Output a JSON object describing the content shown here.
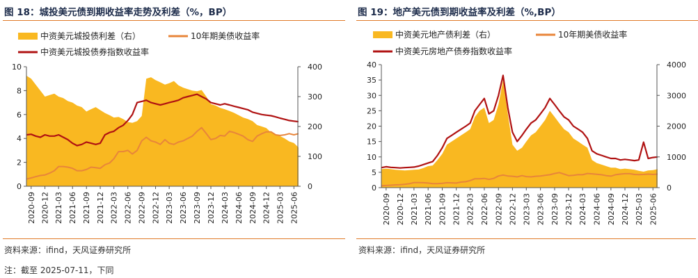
{
  "charts": [
    {
      "figure_label": "图 18：",
      "title": "城投美元债到期收益率走势及利差（%，BP）",
      "source": "资料来源：ifind，天风证券研究所"
    },
    {
      "figure_label": "图 19：",
      "title": "地产美元债到期收益率及利差（%,BP）",
      "source": "资料来源：ifind，天风证券研究所"
    }
  ],
  "note": "注：截至 2025-07-11，下同",
  "colors": {
    "spread": "#f9b821",
    "treasury": "#e8853a",
    "index": "#b01212",
    "rule": "#e07a27"
  },
  "chart_data": [
    {
      "type": "area",
      "title": "",
      "x_ticks": [
        "2020-09",
        "2020-12",
        "2021-03",
        "2021-06",
        "2021-09",
        "2021-12",
        "2022-03",
        "2022-06",
        "2022-09",
        "2022-12",
        "2023-03",
        "2023-06",
        "2023-09",
        "2023-12",
        "2024-03",
        "2024-06",
        "2024-09",
        "2024-12",
        "2025-03",
        "2025-06"
      ],
      "y_left": {
        "range": [
          0,
          10
        ],
        "ticks": [
          "0",
          "2",
          "4",
          "6",
          "8",
          "10"
        ]
      },
      "y_right": {
        "range": [
          0,
          400
        ],
        "ticks": [
          "0",
          "100",
          "200",
          "300",
          "400"
        ]
      },
      "x_range": [
        "2020-08-15",
        "2025-07-11"
      ],
      "legend_position": "top",
      "series": [
        {
          "name": "中资美元城投债利差（右）",
          "type": "area",
          "axis": "right",
          "x": [
            "2020-08",
            "2020-09",
            "2020-10",
            "2020-11",
            "2020-12",
            "2021-01",
            "2021-02",
            "2021-03",
            "2021-04",
            "2021-05",
            "2021-06",
            "2021-07",
            "2021-08",
            "2021-09",
            "2021-10",
            "2021-11",
            "2021-12",
            "2022-01",
            "2022-02",
            "2022-03",
            "2022-04",
            "2022-05",
            "2022-06",
            "2022-07",
            "2022-08",
            "2022-09",
            "2022-10",
            "2022-11",
            "2022-12",
            "2023-01",
            "2023-02",
            "2023-03",
            "2023-04",
            "2023-05",
            "2023-06",
            "2023-07",
            "2023-08",
            "2023-09",
            "2023-10",
            "2023-11",
            "2023-12",
            "2024-01",
            "2024-02",
            "2024-03",
            "2024-04",
            "2024-05",
            "2024-06",
            "2024-07",
            "2024-08",
            "2024-09",
            "2024-10",
            "2024-11",
            "2024-12",
            "2025-01",
            "2025-02",
            "2025-03",
            "2025-04",
            "2025-05",
            "2025-06",
            "2025-07"
          ],
          "values": [
            370,
            360,
            340,
            320,
            300,
            305,
            310,
            300,
            295,
            285,
            280,
            270,
            265,
            250,
            258,
            265,
            255,
            245,
            238,
            230,
            232,
            225,
            215,
            212,
            218,
            235,
            360,
            365,
            355,
            348,
            340,
            345,
            352,
            338,
            330,
            325,
            320,
            318,
            322,
            300,
            275,
            270,
            262,
            258,
            252,
            246,
            238,
            230,
            225,
            218,
            205,
            200,
            195,
            180,
            172,
            168,
            160,
            150,
            145,
            130
          ]
        },
        {
          "name": "10年期美债收益率",
          "type": "line",
          "axis": "left",
          "x": [
            "2020-08",
            "2020-09",
            "2020-10",
            "2020-11",
            "2020-12",
            "2021-01",
            "2021-02",
            "2021-03",
            "2021-04",
            "2021-05",
            "2021-06",
            "2021-07",
            "2021-08",
            "2021-09",
            "2021-10",
            "2021-11",
            "2021-12",
            "2022-01",
            "2022-02",
            "2022-03",
            "2022-04",
            "2022-05",
            "2022-06",
            "2022-07",
            "2022-08",
            "2022-09",
            "2022-10",
            "2022-11",
            "2022-12",
            "2023-01",
            "2023-02",
            "2023-03",
            "2023-04",
            "2023-05",
            "2023-06",
            "2023-07",
            "2023-08",
            "2023-09",
            "2023-10",
            "2023-11",
            "2023-12",
            "2024-01",
            "2024-02",
            "2024-03",
            "2024-04",
            "2024-05",
            "2024-06",
            "2024-07",
            "2024-08",
            "2024-09",
            "2024-10",
            "2024-11",
            "2024-12",
            "2025-01",
            "2025-02",
            "2025-03",
            "2025-04",
            "2025-05",
            "2025-06",
            "2025-07"
          ],
          "values": [
            0.6,
            0.7,
            0.8,
            0.9,
            0.95,
            1.1,
            1.3,
            1.65,
            1.65,
            1.6,
            1.5,
            1.3,
            1.3,
            1.4,
            1.6,
            1.55,
            1.5,
            1.8,
            1.95,
            2.3,
            2.9,
            2.9,
            3.0,
            2.7,
            3.0,
            3.8,
            4.1,
            3.8,
            3.7,
            3.5,
            3.9,
            3.6,
            3.5,
            3.7,
            3.8,
            4.0,
            4.2,
            4.6,
            4.9,
            4.4,
            3.9,
            4.0,
            4.25,
            4.2,
            4.6,
            4.5,
            4.35,
            4.2,
            3.9,
            3.75,
            4.2,
            4.4,
            4.55,
            4.55,
            4.3,
            4.25,
            4.3,
            4.4,
            4.3,
            4.4
          ]
        },
        {
          "name": "中资美元城投债券指数收益率",
          "type": "line",
          "axis": "left",
          "x": [
            "2020-08",
            "2020-09",
            "2020-10",
            "2020-11",
            "2020-12",
            "2021-01",
            "2021-02",
            "2021-03",
            "2021-04",
            "2021-05",
            "2021-06",
            "2021-07",
            "2021-08",
            "2021-09",
            "2021-10",
            "2021-11",
            "2021-12",
            "2022-01",
            "2022-02",
            "2022-03",
            "2022-04",
            "2022-05",
            "2022-06",
            "2022-07",
            "2022-08",
            "2022-09",
            "2022-10",
            "2022-11",
            "2022-12",
            "2023-01",
            "2023-02",
            "2023-03",
            "2023-04",
            "2023-05",
            "2023-06",
            "2023-07",
            "2023-08",
            "2023-09",
            "2023-10",
            "2023-11",
            "2023-12",
            "2024-01",
            "2024-02",
            "2024-03",
            "2024-04",
            "2024-05",
            "2024-06",
            "2024-07",
            "2024-08",
            "2024-09",
            "2024-10",
            "2024-11",
            "2024-12",
            "2025-01",
            "2025-02",
            "2025-03",
            "2025-04",
            "2025-05",
            "2025-06",
            "2025-07"
          ],
          "values": [
            4.3,
            4.35,
            4.2,
            4.1,
            4.3,
            4.2,
            4.2,
            4.3,
            4.1,
            3.9,
            3.6,
            3.4,
            3.5,
            3.7,
            3.6,
            3.5,
            3.6,
            4.3,
            4.5,
            4.6,
            4.9,
            5.1,
            5.5,
            6.0,
            7.0,
            7.1,
            7.2,
            7.0,
            6.9,
            6.8,
            6.9,
            7.0,
            7.1,
            7.2,
            7.4,
            7.5,
            7.6,
            7.7,
            7.5,
            7.3,
            7.0,
            6.9,
            6.8,
            6.9,
            6.8,
            6.7,
            6.6,
            6.5,
            6.4,
            6.2,
            6.1,
            6.0,
            5.95,
            5.9,
            5.8,
            5.7,
            5.6,
            5.5,
            5.45,
            5.4
          ]
        }
      ]
    },
    {
      "type": "area",
      "title": "",
      "x_ticks": [
        "2020-09",
        "2020-12",
        "2021-03",
        "2021-06",
        "2021-09",
        "2021-12",
        "2022-03",
        "2022-06",
        "2022-09",
        "2022-12",
        "2023-03",
        "2023-06",
        "2023-09",
        "2023-12",
        "2024-03",
        "2024-06",
        "2024-09",
        "2024-12",
        "2025-03",
        "2025-06"
      ],
      "y_left": {
        "range": [
          0,
          40
        ],
        "ticks": [
          "0",
          "5",
          "10",
          "15",
          "20",
          "25",
          "30",
          "35",
          "40"
        ]
      },
      "y_right": {
        "range": [
          0,
          4000
        ],
        "ticks": [
          "0",
          "1000",
          "2000",
          "3000",
          "4000"
        ]
      },
      "x_range": [
        "2020-08-15",
        "2025-07-11"
      ],
      "legend_position": "top",
      "series": [
        {
          "name": "中资美元地产债利差（右）",
          "type": "area",
          "axis": "right",
          "x": [
            "2020-08",
            "2020-09",
            "2020-10",
            "2020-11",
            "2020-12",
            "2021-01",
            "2021-02",
            "2021-03",
            "2021-04",
            "2021-05",
            "2021-06",
            "2021-07",
            "2021-08",
            "2021-09",
            "2021-10",
            "2021-11",
            "2021-12",
            "2022-01",
            "2022-02",
            "2022-03",
            "2022-04",
            "2022-05",
            "2022-06",
            "2022-07",
            "2022-08",
            "2022-09",
            "2022-10",
            "2022-11",
            "2022-12",
            "2023-01",
            "2023-02",
            "2023-03",
            "2023-04",
            "2023-05",
            "2023-06",
            "2023-07",
            "2023-08",
            "2023-09",
            "2023-10",
            "2023-11",
            "2023-12",
            "2024-01",
            "2024-02",
            "2024-03",
            "2024-04",
            "2024-05",
            "2024-06",
            "2024-07",
            "2024-08",
            "2024-09",
            "2024-10",
            "2024-11",
            "2024-12",
            "2025-01",
            "2025-02",
            "2025-03",
            "2025-04",
            "2025-05",
            "2025-06",
            "2025-07"
          ],
          "values": [
            600,
            620,
            600,
            580,
            570,
            560,
            570,
            580,
            590,
            640,
            700,
            720,
            900,
            1100,
            1400,
            1500,
            1600,
            1700,
            1800,
            1900,
            2300,
            2500,
            2600,
            2100,
            2200,
            2700,
            3500,
            2400,
            1400,
            1200,
            1300,
            1500,
            1700,
            1800,
            2000,
            2200,
            2500,
            2300,
            2100,
            1900,
            1800,
            1600,
            1500,
            1400,
            1300,
            900,
            800,
            750,
            700,
            650,
            650,
            600,
            620,
            600,
            580,
            550,
            520,
            560,
            570,
            600
          ]
        },
        {
          "name": "10年期美债收益率",
          "type": "line",
          "axis": "left",
          "x": [
            "2020-08",
            "2020-09",
            "2020-10",
            "2020-11",
            "2020-12",
            "2021-01",
            "2021-02",
            "2021-03",
            "2021-04",
            "2021-05",
            "2021-06",
            "2021-07",
            "2021-08",
            "2021-09",
            "2021-10",
            "2021-11",
            "2021-12",
            "2022-01",
            "2022-02",
            "2022-03",
            "2022-04",
            "2022-05",
            "2022-06",
            "2022-07",
            "2022-08",
            "2022-09",
            "2022-10",
            "2022-11",
            "2022-12",
            "2023-01",
            "2023-02",
            "2023-03",
            "2023-04",
            "2023-05",
            "2023-06",
            "2023-07",
            "2023-08",
            "2023-09",
            "2023-10",
            "2023-11",
            "2023-12",
            "2024-01",
            "2024-02",
            "2024-03",
            "2024-04",
            "2024-05",
            "2024-06",
            "2024-07",
            "2024-08",
            "2024-09",
            "2024-10",
            "2024-11",
            "2024-12",
            "2025-01",
            "2025-02",
            "2025-03",
            "2025-04",
            "2025-05",
            "2025-06",
            "2025-07"
          ],
          "values": [
            0.6,
            0.7,
            0.8,
            0.9,
            0.95,
            1.1,
            1.3,
            1.65,
            1.65,
            1.6,
            1.5,
            1.3,
            1.3,
            1.4,
            1.6,
            1.55,
            1.5,
            1.8,
            1.95,
            2.3,
            2.9,
            2.9,
            3.0,
            2.7,
            3.0,
            3.8,
            4.1,
            3.8,
            3.7,
            3.5,
            3.9,
            3.6,
            3.5,
            3.7,
            3.8,
            4.0,
            4.2,
            4.6,
            4.9,
            4.4,
            3.9,
            4.0,
            4.25,
            4.2,
            4.6,
            4.5,
            4.35,
            4.2,
            3.9,
            3.75,
            4.2,
            4.4,
            4.55,
            4.55,
            4.3,
            4.25,
            4.3,
            4.4,
            4.3,
            4.4
          ]
        },
        {
          "name": "中资美元房地产债券指数收益率",
          "type": "line",
          "axis": "left",
          "x": [
            "2020-08",
            "2020-09",
            "2020-10",
            "2020-11",
            "2020-12",
            "2021-01",
            "2021-02",
            "2021-03",
            "2021-04",
            "2021-05",
            "2021-06",
            "2021-07",
            "2021-08",
            "2021-09",
            "2021-10",
            "2021-11",
            "2021-12",
            "2022-01",
            "2022-02",
            "2022-03",
            "2022-04",
            "2022-05",
            "2022-06",
            "2022-07",
            "2022-08",
            "2022-09",
            "2022-10",
            "2022-11",
            "2022-12",
            "2023-01",
            "2023-02",
            "2023-03",
            "2023-04",
            "2023-05",
            "2023-06",
            "2023-07",
            "2023-08",
            "2023-09",
            "2023-10",
            "2023-11",
            "2023-12",
            "2024-01",
            "2024-02",
            "2024-03",
            "2024-04",
            "2024-05",
            "2024-06",
            "2024-07",
            "2024-08",
            "2024-09",
            "2024-10",
            "2024-11",
            "2024-12",
            "2025-01",
            "2025-02",
            "2025-03",
            "2025-04",
            "2025-05",
            "2025-06",
            "2025-07"
          ],
          "values": [
            6.5,
            6.8,
            6.6,
            6.5,
            6.4,
            6.5,
            6.6,
            6.7,
            7.0,
            7.5,
            8.0,
            8.5,
            10.5,
            13.0,
            16.0,
            17.0,
            18.0,
            19.0,
            20.0,
            21.0,
            25.0,
            27.0,
            29.0,
            24.0,
            25.0,
            30.0,
            36.5,
            26.0,
            18.0,
            15.0,
            17.0,
            19.0,
            21.0,
            22.0,
            24.0,
            26.0,
            29.0,
            27.0,
            25.0,
            23.0,
            22.0,
            20.0,
            19.0,
            18.0,
            16.0,
            12.0,
            11.0,
            10.5,
            10.0,
            9.5,
            9.5,
            9.0,
            9.2,
            9.0,
            8.8,
            9.0,
            14.8,
            9.5,
            9.8,
            10.0
          ]
        }
      ]
    }
  ]
}
